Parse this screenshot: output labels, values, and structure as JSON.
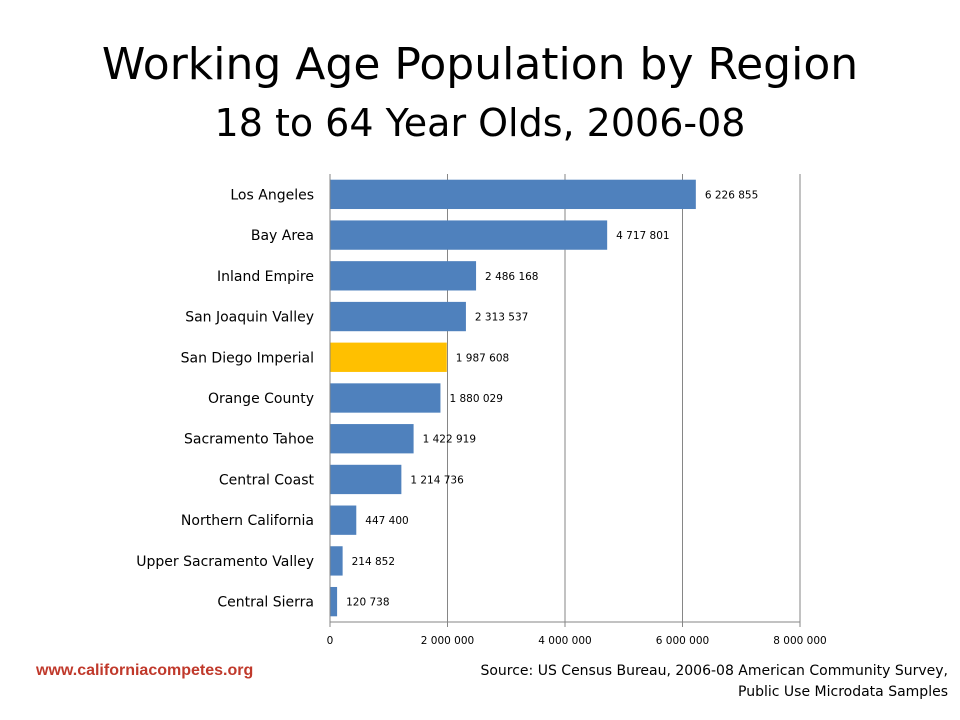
{
  "chart_data": {
    "type": "bar",
    "orientation": "horizontal",
    "title": "Working Age Population by Region",
    "subtitle": "18 to 64 Year Olds, 2006-08",
    "categories": [
      "Los Angeles",
      "Bay Area",
      "Inland Empire",
      "San Joaquin Valley",
      "San Diego Imperial",
      "Orange County",
      "Sacramento Tahoe",
      "Central Coast",
      "Northern California",
      "Upper Sacramento Valley",
      "Central Sierra"
    ],
    "values": [
      6226855,
      4717801,
      2486168,
      2313537,
      1987608,
      1880029,
      1422919,
      1214736,
      447400,
      214852,
      120738
    ],
    "value_labels": [
      "6 226 855",
      "4 717 801",
      "2 486 168",
      "2 313 537",
      "1 987 608",
      "1 880 029",
      "1 422 919",
      "1 214 736",
      "447 400",
      "214 852",
      "120 738"
    ],
    "xlim": [
      0,
      8000000
    ],
    "x_ticks": [
      0,
      2000000,
      4000000,
      6000000,
      8000000
    ],
    "x_tick_labels": [
      "0",
      "2 000 000",
      "4 000 000",
      "6 000 000",
      "8 000 000"
    ],
    "grid": "vertical",
    "bar_color": "#4f81bd",
    "highlight_color": "#ffc000",
    "highlight_category": "San Diego Imperial"
  },
  "footer": {
    "website": "www.californiacompetes.org",
    "source_line1": "Source: US Census Bureau, 2006-08 American Community Survey,",
    "source_line2": "Public Use Microdata Samples"
  }
}
